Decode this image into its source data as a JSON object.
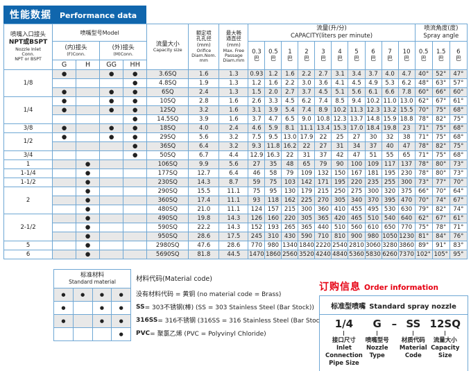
{
  "colors": {
    "header_blue": "#1066ad",
    "accent_red": "#e60012",
    "table_border": "#6ea7d4",
    "row_stripe": "#e8e8e8"
  },
  "title": {
    "zh": "性能数据",
    "en": "Performance data"
  },
  "table": {
    "inlet_header": {
      "zh": "喷嘴入口接头",
      "sub": "NPT或BSPT",
      "en": "Nozzle Inlet\nConn.\nNPT or BSPT"
    },
    "model_header": "喷嘴型号Model",
    "fconn": {
      "zh": "(内)接头",
      "en": "(F)Conn."
    },
    "mconn": {
      "zh": "(外)接头",
      "en": "(M)Conn."
    },
    "model_cols": [
      "G",
      "H",
      "GG",
      "HH"
    ],
    "capacity_header": {
      "zh": "流量大小",
      "en": "Capacity size"
    },
    "orifice_header": {
      "zh": "额定喷\n孔孔径\n(mm)",
      "en": "Orifice\nDiam.Nom.\nmm"
    },
    "passage_header": {
      "zh": "最大畅\n通直径\n(mm)",
      "en": "Max. Free\nPassage\nDiam.mm"
    },
    "capacity_group": {
      "zh": "流量(升/分)",
      "en": "CAPACITY(liters per minute)"
    },
    "angle_group": {
      "zh": "喷流角度(度)",
      "en": "Spray angle"
    },
    "bar_unit": "巴",
    "dot": "●",
    "pressures": [
      "0.3",
      "0.5",
      "1",
      "2",
      "3",
      "4",
      "5",
      "6",
      "7",
      "10"
    ],
    "angle_pressures": [
      "0.5",
      "1.5",
      "6"
    ],
    "rows": [
      {
        "inlet": "1/8",
        "span": 3,
        "dots": [
          1,
          0,
          1,
          1
        ],
        "size": "3.6SQ",
        "orifice": "1.6",
        "passage": "1.3",
        "flow": [
          "0.93",
          "1.2",
          "1.6",
          "2.2",
          "2.7",
          "3.1",
          "3.4",
          "3.7",
          "4.0",
          "4.7"
        ],
        "angles": [
          "40°",
          "52°",
          "47°"
        ]
      },
      {
        "dots": [
          0,
          0,
          0,
          1
        ],
        "size": "4.8SQ",
        "orifice": "1.9",
        "passage": "1.3",
        "flow": [
          "1.2",
          "1.6",
          "2.2",
          "3.0",
          "3.6",
          "4.1",
          "4.5",
          "4.9",
          "5.3",
          "6.2"
        ],
        "angles": [
          "48°",
          "63°",
          "57°"
        ]
      },
      {
        "dots": [
          1,
          0,
          1,
          1
        ],
        "size": "6SQ",
        "orifice": "2.4",
        "passage": "1.3",
        "flow": [
          "1.5",
          "2.0",
          "2.7",
          "3.7",
          "4.5",
          "5.1",
          "5.6",
          "6.1",
          "6.6",
          "7.8"
        ],
        "angles": [
          "60°",
          "66°",
          "60°"
        ]
      },
      {
        "inlet": "1/4",
        "span": 3,
        "dots": [
          1,
          0,
          1,
          1
        ],
        "size": "10SQ",
        "orifice": "2.8",
        "passage": "1.6",
        "flow": [
          "2.6",
          "3.3",
          "4.5",
          "6.2",
          "7.4",
          "8.5",
          "9.4",
          "10.2",
          "11.0",
          "13.0"
        ],
        "angles": [
          "62°",
          "67°",
          "61°"
        ]
      },
      {
        "dots": [
          1,
          0,
          1,
          1
        ],
        "size": "12SQ",
        "orifice": "3.2",
        "passage": "1.6",
        "flow": [
          "3.1",
          "3.9",
          "5.4",
          "7.4",
          "8.9",
          "10.2",
          "11.3",
          "12.3",
          "13.2",
          "15.5"
        ],
        "angles": [
          "70°",
          "75°",
          "68°"
        ]
      },
      {
        "dots": [
          0,
          0,
          0,
          1
        ],
        "size": "14.5SQ",
        "orifice": "3.9",
        "passage": "1.6",
        "flow": [
          "3.7",
          "4.7",
          "6.5",
          "9.0",
          "10.8",
          "12.3",
          "13.7",
          "14.8",
          "15.9",
          "18.8"
        ],
        "angles": [
          "78°",
          "82°",
          "75°"
        ]
      },
      {
        "inlet": "3/8",
        "span": 1,
        "dots": [
          1,
          0,
          1,
          1
        ],
        "size": "18SQ",
        "orifice": "4.0",
        "passage": "2.4",
        "flow": [
          "4.6",
          "5.9",
          "8.1",
          "11.1",
          "13.4",
          "15.3",
          "17.0",
          "18.4",
          "19.8",
          "23"
        ],
        "angles": [
          "71°",
          "75°",
          "68°"
        ]
      },
      {
        "inlet": "1/2",
        "span": 2,
        "dots": [
          1,
          0,
          1,
          1
        ],
        "size": "29SQ",
        "orifice": "5.6",
        "passage": "3.2",
        "flow": [
          "7.5",
          "9.5",
          "13.0",
          "17.9",
          "22",
          "25",
          "27",
          "30",
          "32",
          "38"
        ],
        "angles": [
          "71°",
          "75°",
          "68°"
        ]
      },
      {
        "dots": [
          0,
          0,
          0,
          1
        ],
        "size": "36SQ",
        "orifice": "6.4",
        "passage": "3.2",
        "flow": [
          "9.3",
          "11.8",
          "16.2",
          "22",
          "27",
          "31",
          "34",
          "37",
          "40",
          "47"
        ],
        "angles": [
          "78°",
          "82°",
          "75°"
        ]
      },
      {
        "inlet": "3/4",
        "span": 1,
        "dots": [
          0,
          0,
          0,
          1
        ],
        "size": "50SQ",
        "orifice": "6.7",
        "passage": "4.4",
        "flow": [
          "12.9",
          "16.3",
          "22",
          "31",
          "37",
          "42",
          "47",
          "51",
          "55",
          "65"
        ],
        "angles": [
          "71°",
          "75°",
          "68°"
        ]
      },
      {
        "inlet": "1",
        "span": 1,
        "dots": [
          0,
          1,
          0,
          0
        ],
        "size": "106SQ",
        "orifice": "9.9",
        "passage": "5.6",
        "flow": [
          "27",
          "35",
          "48",
          "65",
          "79",
          "90",
          "100",
          "109",
          "117",
          "137"
        ],
        "angles": [
          "78°",
          "80°",
          "73°"
        ]
      },
      {
        "inlet": "1-1/4",
        "span": 1,
        "dots": [
          0,
          1,
          0,
          0
        ],
        "size": "177SQ",
        "orifice": "12.7",
        "passage": "6.4",
        "flow": [
          "46",
          "58",
          "79",
          "109",
          "132",
          "150",
          "167",
          "181",
          "195",
          "230"
        ],
        "angles": [
          "78°",
          "80°",
          "73°"
        ]
      },
      {
        "inlet": "1-1/2",
        "span": 1,
        "dots": [
          0,
          1,
          0,
          0
        ],
        "size": "230SQ",
        "orifice": "14.3",
        "passage": "8.7",
        "flow": [
          "59",
          "75",
          "103",
          "142",
          "171",
          "195",
          "220",
          "235",
          "255",
          "300"
        ],
        "angles": [
          "73°",
          "77°",
          "70°"
        ]
      },
      {
        "inlet": "2",
        "span": 3,
        "dots": [
          0,
          1,
          0,
          0
        ],
        "size": "290SQ",
        "orifice": "15.5",
        "passage": "11.1",
        "flow": [
          "75",
          "95",
          "130",
          "179",
          "215",
          "250",
          "275",
          "300",
          "320",
          "375"
        ],
        "angles": [
          "66°",
          "70°",
          "64°"
        ]
      },
      {
        "dots": [
          0,
          1,
          0,
          0
        ],
        "size": "360SQ",
        "orifice": "17.4",
        "passage": "11.1",
        "flow": [
          "93",
          "118",
          "162",
          "225",
          "270",
          "305",
          "340",
          "370",
          "395",
          "470"
        ],
        "angles": [
          "70°",
          "74°",
          "67°"
        ]
      },
      {
        "dots": [
          0,
          1,
          0,
          0
        ],
        "size": "480SQ",
        "orifice": "21.0",
        "passage": "11.1",
        "flow": [
          "124",
          "157",
          "215",
          "300",
          "360",
          "410",
          "455",
          "495",
          "530",
          "630"
        ],
        "angles": [
          "79°",
          "82°",
          "74°"
        ]
      },
      {
        "inlet": "2-1/2",
        "span": 3,
        "dots": [
          0,
          1,
          0,
          0
        ],
        "size": "490SQ",
        "orifice": "19.8",
        "passage": "14.3",
        "flow": [
          "126",
          "160",
          "220",
          "305",
          "365",
          "420",
          "465",
          "510",
          "540",
          "640"
        ],
        "angles": [
          "62°",
          "67°",
          "61°"
        ]
      },
      {
        "dots": [
          0,
          1,
          0,
          0
        ],
        "size": "590SQ",
        "orifice": "22.2",
        "passage": "14.3",
        "flow": [
          "152",
          "193",
          "265",
          "365",
          "440",
          "510",
          "560",
          "610",
          "650",
          "770"
        ],
        "angles": [
          "75°",
          "78°",
          "71°"
        ]
      },
      {
        "dots": [
          0,
          1,
          0,
          0
        ],
        "size": "950SQ",
        "orifice": "28.6",
        "passage": "17.5",
        "flow": [
          "245",
          "310",
          "430",
          "590",
          "710",
          "810",
          "900",
          "980",
          "1050",
          "1230"
        ],
        "angles": [
          "81°",
          "84°",
          "76°"
        ]
      },
      {
        "inlet": "5",
        "span": 1,
        "dots": [
          0,
          1,
          0,
          0
        ],
        "size": "2980SQ",
        "orifice": "47.6",
        "passage": "28.6",
        "flow": [
          "770",
          "980",
          "1340",
          "1840",
          "2220",
          "2540",
          "2810",
          "3060",
          "3280",
          "3860"
        ],
        "angles": [
          "89°",
          "91°",
          "83°"
        ]
      },
      {
        "inlet": "6",
        "span": 1,
        "dots": [
          0,
          1,
          0,
          0
        ],
        "size": "5690SQ",
        "orifice": "81.8",
        "passage": "44.5",
        "flow": [
          "1470",
          "1860",
          "2560",
          "3520",
          "4240",
          "4840",
          "5360",
          "5830",
          "6260",
          "7370"
        ],
        "angles": [
          "102°",
          "105°",
          "95°"
        ]
      }
    ]
  },
  "materials": {
    "title": {
      "zh": "标准材料",
      "en": "Standard material"
    },
    "dot_rows": [
      [
        1,
        1,
        1,
        1
      ],
      [
        1,
        0,
        1,
        1
      ],
      [
        1,
        0,
        1,
        1
      ],
      [
        0,
        0,
        0,
        1
      ]
    ],
    "code_title": "材料代码(Material code)",
    "lines": [
      {
        "code": "",
        "rest": "没有材料代码 = 黄铜  (no material code = Brass)"
      },
      {
        "code": "SS",
        "rest": " = 303不锈钢(棒)  (SS = 303 Stainless Steel (Bar Stock))"
      },
      {
        "code": "316SS",
        "rest": " = 316不锈钢 (316SS = 316 Stainless Steel (Bar Stock))"
      },
      {
        "code": "PVC",
        "rest": " = 聚氯乙烯 (PVC = Polyvinyl Chloride)"
      }
    ]
  },
  "order": {
    "title": {
      "zh": "订购信息",
      "en": "Order information"
    },
    "box_header": {
      "zh": "标准型喷嘴",
      "en": "Standard spray nozzle"
    },
    "parts": [
      {
        "code": "1/4",
        "label": "接口尺寸\nInlet\nConnection\nPipe Size"
      },
      {
        "code": "G",
        "label": "喷嘴型号\nNozzle\nType"
      },
      {
        "code": "–",
        "label": ""
      },
      {
        "code": "SS",
        "label": "材质代码\nMaterial\nCode"
      },
      {
        "code": "12SQ",
        "label": "流量大小\nCapacity\nSize"
      }
    ]
  }
}
